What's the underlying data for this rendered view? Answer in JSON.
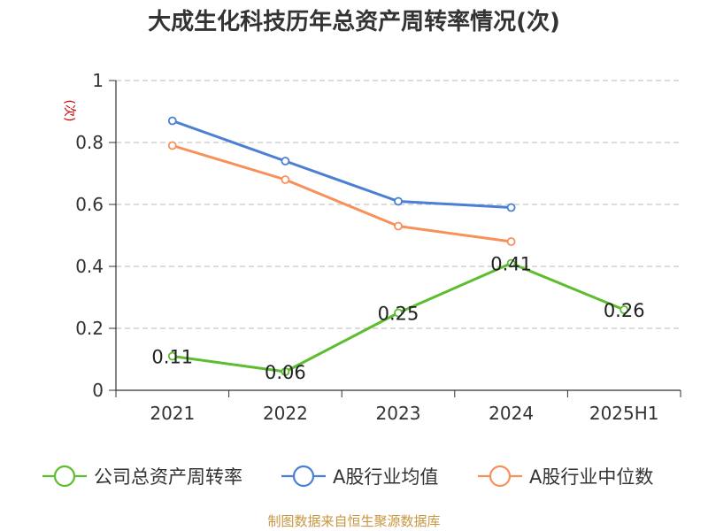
{
  "chart_data": {
    "type": "line",
    "title": "大成生化科技历年总资产周转率情况(次)",
    "ylabel": "(次)",
    "xlabel": "",
    "categories": [
      "2021",
      "2022",
      "2023",
      "2024",
      "2025H1"
    ],
    "ylim": [
      0,
      1
    ],
    "yticks": [
      "0",
      "0.2",
      "0.4",
      "0.6",
      "0.8",
      "1"
    ],
    "grid": true,
    "legend_position": "bottom",
    "series": [
      {
        "name": "公司总资产周转率",
        "color": "#5cbd2e",
        "values": [
          0.11,
          0.06,
          0.25,
          0.41,
          0.26
        ],
        "labels": [
          "0.11",
          "0.06",
          "0.25",
          "0.41",
          "0.26"
        ]
      },
      {
        "name": "A股行业均值",
        "color": "#4a7fd4",
        "values": [
          0.87,
          0.74,
          0.61,
          0.59,
          null
        ]
      },
      {
        "name": "A股行业中位数",
        "color": "#f7905a",
        "values": [
          0.79,
          0.68,
          0.53,
          0.48,
          null
        ]
      }
    ],
    "source": "制图数据来自恒生聚源数据库"
  }
}
